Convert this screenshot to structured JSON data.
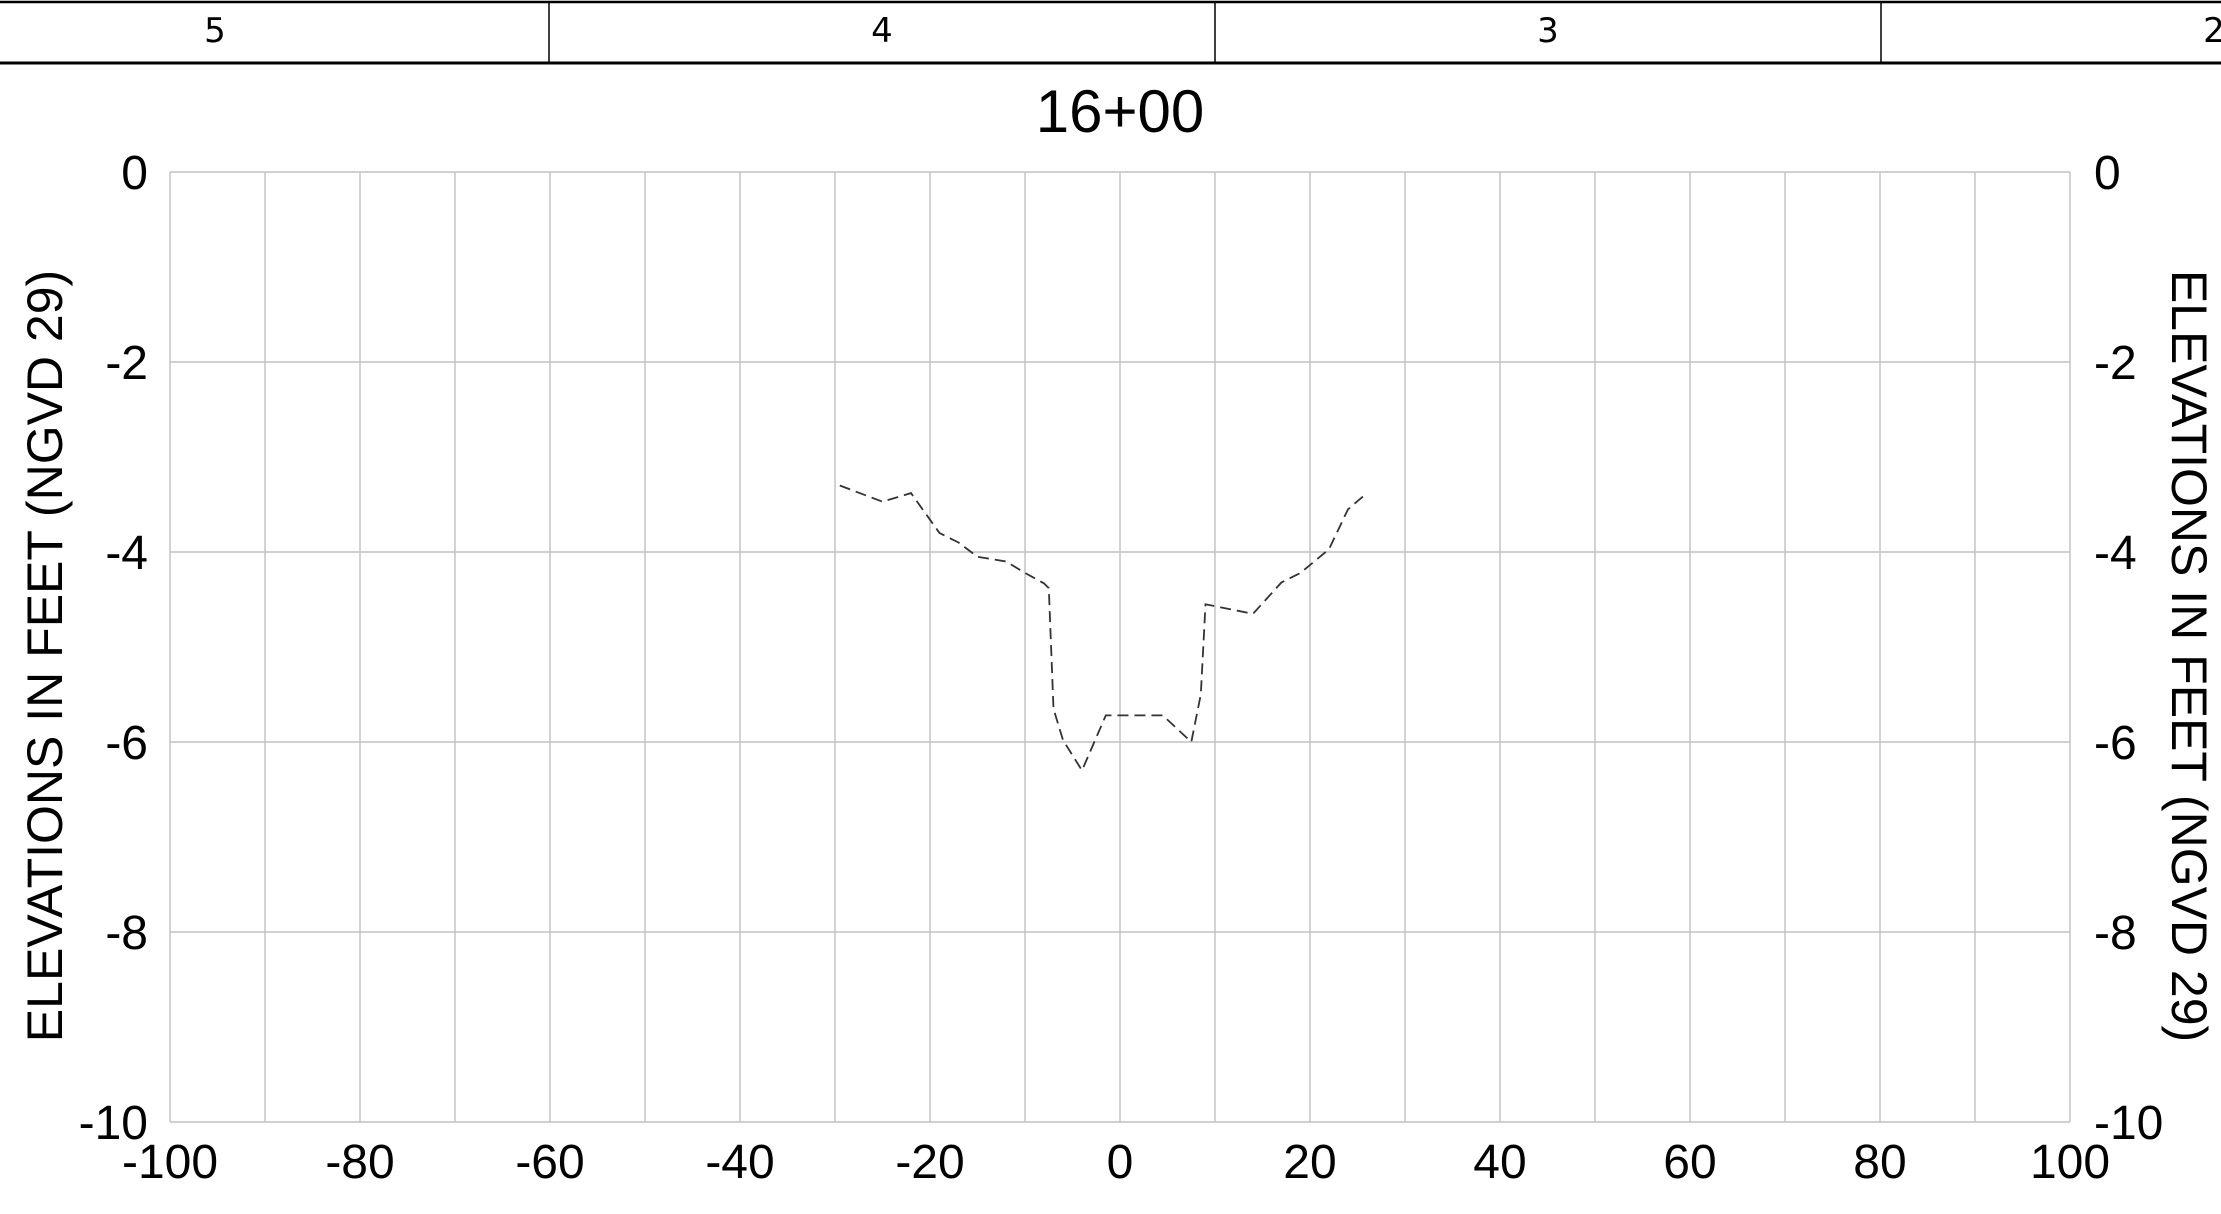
{
  "header": {
    "cells": [
      "5",
      "4",
      "3",
      "2"
    ]
  },
  "chart_data": {
    "type": "line",
    "title": "16+00",
    "ylabel_left": "ELEVATIONS IN FEET (NGVD 29)",
    "ylabel_right": "ELEVATIONS IN FEET (NGVD 29)",
    "xlim": [
      -100,
      100
    ],
    "ylim": [
      -10,
      0
    ],
    "x_ticks": [
      -100,
      -80,
      -60,
      -40,
      -20,
      0,
      20,
      40,
      60,
      80,
      100
    ],
    "x_tick_labels": [
      "-100",
      "-80",
      "-60",
      "-40",
      "-20",
      "0",
      "20",
      "40",
      "60",
      "80",
      "100"
    ],
    "y_ticks": [
      0,
      -2,
      -4,
      -6,
      -8,
      -10
    ],
    "y_tick_labels": [
      "0",
      "-2",
      "-4",
      "-6",
      "-8",
      "-10"
    ],
    "x_grid_step": 10,
    "grid": true,
    "series": [
      {
        "style": "dashed",
        "color": "#333333",
        "x": [
          -29.5,
          -25,
          -22,
          -19,
          -17,
          -15,
          -12,
          -10,
          -8,
          -7.5,
          -7,
          -6,
          -4,
          -1.5,
          4.5,
          7.5,
          8.5,
          9,
          14,
          17,
          19,
          22,
          24,
          26
        ],
        "y": [
          -3.3,
          -3.47,
          -3.38,
          -3.8,
          -3.9,
          -4.05,
          -4.1,
          -4.22,
          -4.33,
          -4.38,
          -5.65,
          -5.98,
          -6.3,
          -5.72,
          -5.72,
          -6.0,
          -5.5,
          -4.55,
          -4.65,
          -4.32,
          -4.22,
          -3.97,
          -3.55,
          -3.38
        ]
      }
    ]
  }
}
